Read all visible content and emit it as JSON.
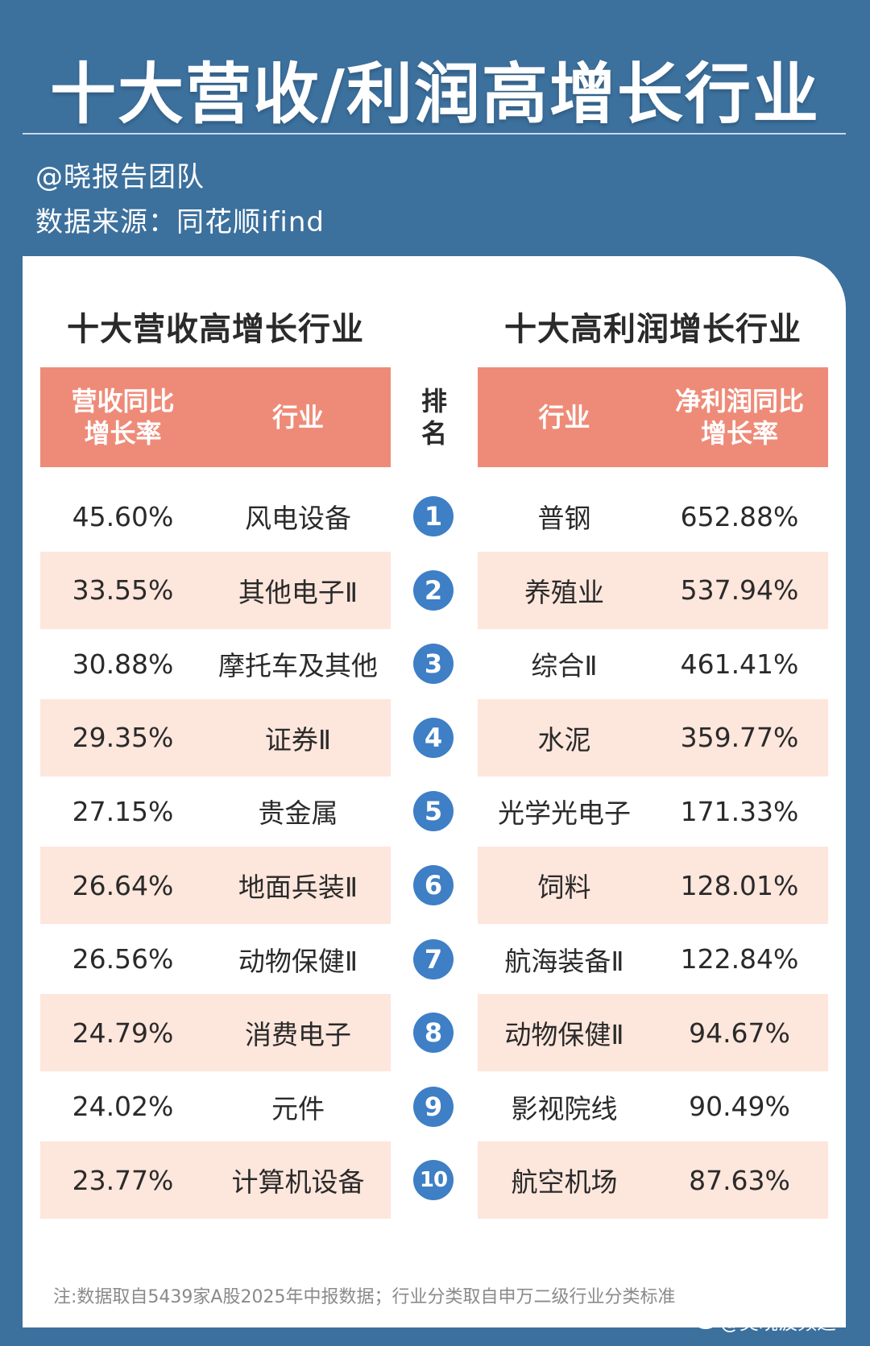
{
  "header": {
    "title": "十大营收/利润高增长行业",
    "author": "@晓报告团队",
    "source": "数据来源：同花顺ifind"
  },
  "left_table": {
    "title": "十大营收高增长行业",
    "col_growth": "营收同比\n增长率",
    "col_industry": "行业",
    "rows": [
      {
        "growth": "45.60%",
        "industry": "风电设备"
      },
      {
        "growth": "33.55%",
        "industry": "其他电子Ⅱ"
      },
      {
        "growth": "30.88%",
        "industry": "摩托车及其他"
      },
      {
        "growth": "29.35%",
        "industry": "证券Ⅱ"
      },
      {
        "growth": "27.15%",
        "industry": "贵金属"
      },
      {
        "growth": "26.64%",
        "industry": "地面兵装Ⅱ"
      },
      {
        "growth": "26.56%",
        "industry": "动物保健Ⅱ"
      },
      {
        "growth": "24.79%",
        "industry": "消费电子"
      },
      {
        "growth": "24.02%",
        "industry": "元件"
      },
      {
        "growth": "23.77%",
        "industry": "计算机设备"
      }
    ]
  },
  "rank_column": {
    "header": "排\n名",
    "ranks": [
      "1",
      "2",
      "3",
      "4",
      "5",
      "6",
      "7",
      "8",
      "9",
      "10"
    ]
  },
  "right_table": {
    "title": "十大高利润增长行业",
    "col_industry": "行业",
    "col_growth": "净利润同比\n增长率",
    "rows": [
      {
        "industry": "普钢",
        "growth": "652.88%"
      },
      {
        "industry": "养殖业",
        "growth": "537.94%"
      },
      {
        "industry": "综合Ⅱ",
        "growth": "461.41%"
      },
      {
        "industry": "水泥",
        "growth": "359.77%"
      },
      {
        "industry": "光学光电子",
        "growth": "171.33%"
      },
      {
        "industry": "饲料",
        "growth": "128.01%"
      },
      {
        "industry": "航海装备Ⅱ",
        "growth": "122.84%"
      },
      {
        "industry": "动物保健Ⅱ",
        "growth": "94.67%"
      },
      {
        "industry": "影视院线",
        "growth": "90.49%"
      },
      {
        "industry": "航空机场",
        "growth": "87.63%"
      }
    ]
  },
  "footer": {
    "note": "注:数据取自5439家A股2025年中报数据；行业分类取自申万二级行业分类标准",
    "watermark": "@昊晓波频道"
  },
  "colors": {
    "background": "#3c709d",
    "header_fill": "#ee8b78",
    "stripe_fill": "#fde6dc",
    "rank_badge": "#3e7fc6"
  }
}
